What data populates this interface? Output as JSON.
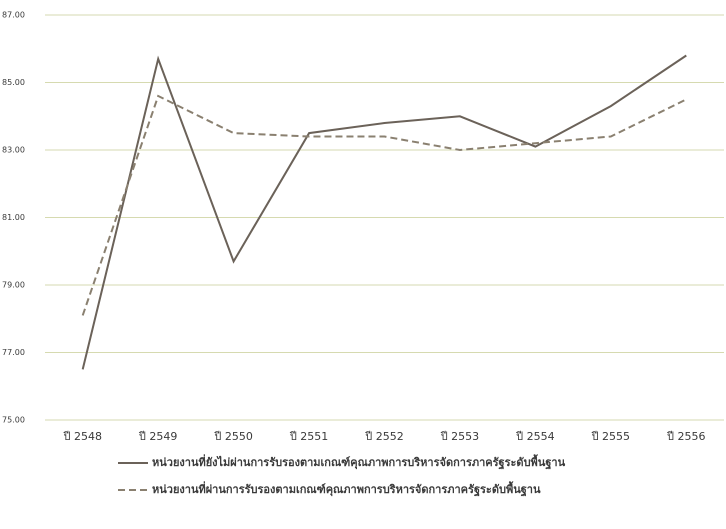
{
  "chart_data": {
    "type": "line",
    "categories": [
      "ปี 2548",
      "ปี 2549",
      "ปี 2550",
      "ปี 2551",
      "ปี 2552",
      "ปี 2553",
      "ปี 2554",
      "ปี 2555",
      "ปี 2556"
    ],
    "series": [
      {
        "name": "หน่วยงานที่ยังไม่ผ่านการรับรองตามเกณฑ์คุณภาพการบริหารจัดการภาครัฐระดับพื้นฐาน",
        "color": "#6b6259",
        "line_style": "solid",
        "values": [
          76.5,
          85.7,
          79.7,
          83.5,
          83.8,
          84.0,
          83.1,
          84.3,
          85.8
        ]
      },
      {
        "name": "หน่วยงานที่ผ่านการรับรองตามเกณฑ์คุณภาพการบริหารจัดการภาครัฐระดับพื้นฐาน",
        "color": "#8a8070",
        "line_style": "dashed",
        "values": [
          78.1,
          84.6,
          83.5,
          83.4,
          83.4,
          83.0,
          83.2,
          83.4,
          84.5
        ]
      }
    ],
    "ylim": [
      75,
      87
    ],
    "yticks": [
      {
        "value": 75,
        "label": "75.00"
      },
      {
        "value": 77,
        "label": "77.00"
      },
      {
        "value": 79,
        "label": "79.00"
      },
      {
        "value": 81,
        "label": "81.00"
      },
      {
        "value": 83,
        "label": "83.00"
      },
      {
        "value": 85,
        "label": "85.00"
      },
      {
        "value": 87,
        "label": "87.00"
      }
    ],
    "grid": true,
    "legend": "bottom"
  }
}
